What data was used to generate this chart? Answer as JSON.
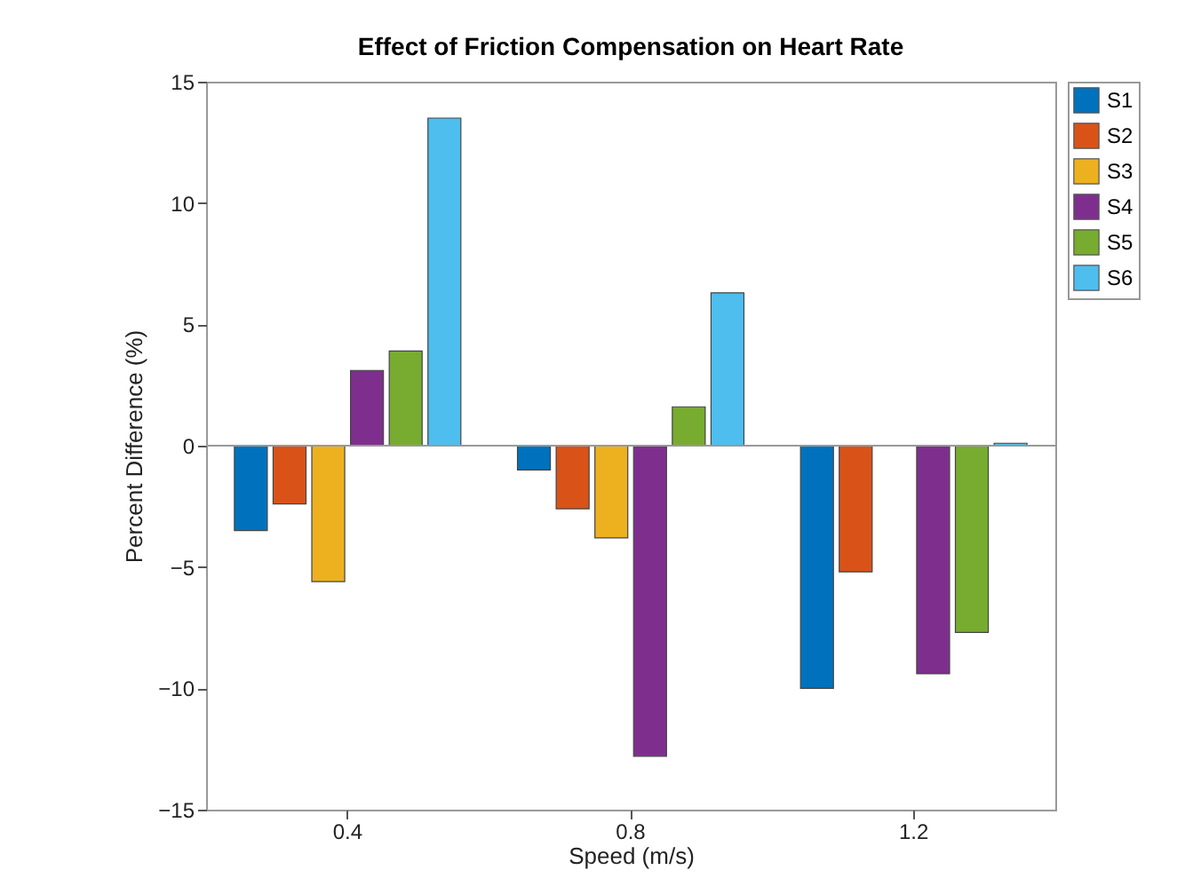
{
  "chart_data": {
    "type": "bar",
    "title": "Effect of Friction Compensation on Heart Rate",
    "xlabel": "Speed (m/s)",
    "ylabel": "Percent Difference (%)",
    "categories": [
      "0.4",
      "0.8",
      "1.2"
    ],
    "series": [
      {
        "name": "S1",
        "color": "#0072bd",
        "values": [
          -3.5,
          -1.0,
          -10.0
        ]
      },
      {
        "name": "S2",
        "color": "#d95319",
        "values": [
          -2.4,
          -2.6,
          -5.2
        ]
      },
      {
        "name": "S3",
        "color": "#edb120",
        "values": [
          -5.6,
          -3.8,
          null
        ]
      },
      {
        "name": "S4",
        "color": "#7e2f8e",
        "values": [
          3.1,
          -12.8,
          -9.4
        ]
      },
      {
        "name": "S5",
        "color": "#77ac30",
        "values": [
          3.9,
          1.6,
          -7.7
        ]
      },
      {
        "name": "S6",
        "color": "#4dbeee",
        "values": [
          13.5,
          6.3,
          0.1
        ]
      }
    ],
    "ylim": [
      -15,
      15
    ],
    "yticks": [
      -15,
      -10,
      -5,
      0,
      5,
      10,
      15
    ],
    "ref_lines": [
      {
        "axis": "y",
        "value": 0,
        "color": "#999999"
      }
    ],
    "grid": false,
    "legend": "top right"
  }
}
